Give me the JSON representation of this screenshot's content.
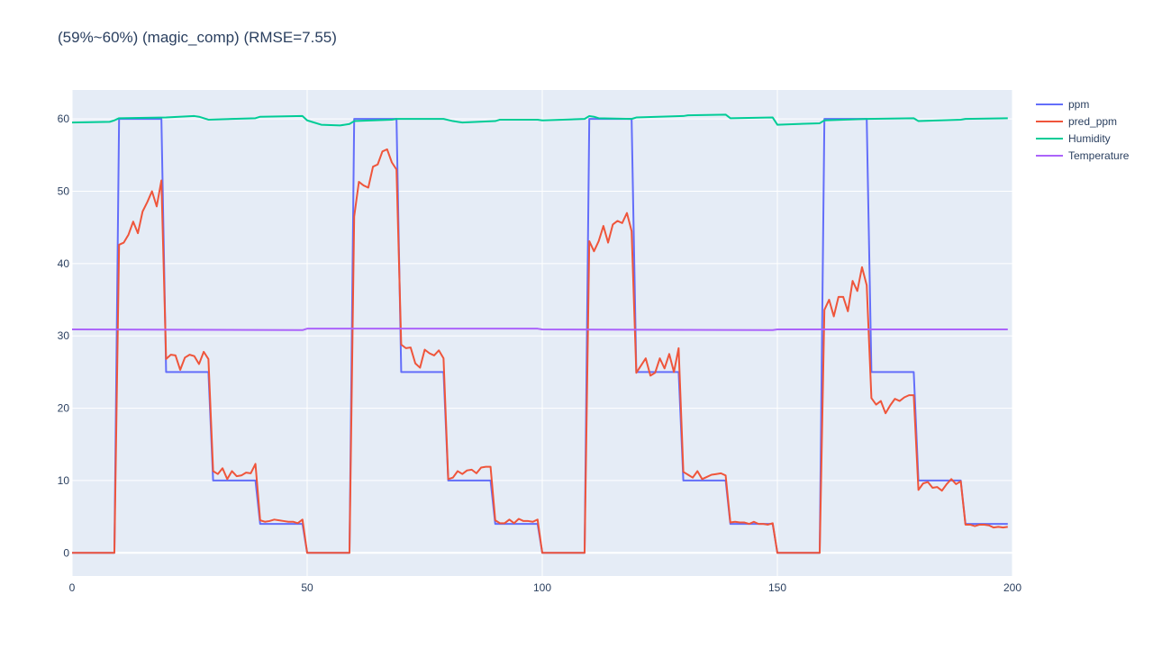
{
  "chart_data": {
    "type": "line",
    "title": "(59%~60%) (magic_comp) (RMSE=7.55)",
    "xlabel": "",
    "ylabel": "",
    "xlim": [
      0,
      200
    ],
    "ylim": [
      -3.2,
      64
    ],
    "x_ticks": [
      0,
      50,
      100,
      150,
      200
    ],
    "y_ticks": [
      0,
      10,
      20,
      30,
      40,
      50,
      60
    ],
    "grid": true,
    "legend_position": "top-right",
    "plot_background": "#e5ecf6",
    "series": [
      {
        "name": "ppm",
        "color": "#636efa",
        "points": [
          [
            0,
            0
          ],
          [
            9,
            0
          ],
          [
            10,
            60
          ],
          [
            19,
            60
          ],
          [
            20,
            25
          ],
          [
            29,
            25
          ],
          [
            30,
            10
          ],
          [
            39,
            10
          ],
          [
            40,
            4
          ],
          [
            49,
            4
          ],
          [
            50,
            0
          ],
          [
            59,
            0
          ],
          [
            60,
            60
          ],
          [
            69,
            60
          ],
          [
            70,
            25
          ],
          [
            79,
            25
          ],
          [
            80,
            10
          ],
          [
            89,
            10
          ],
          [
            90,
            4
          ],
          [
            99,
            4
          ],
          [
            100,
            0
          ],
          [
            109,
            0
          ],
          [
            110,
            60
          ],
          [
            119,
            60
          ],
          [
            120,
            25
          ],
          [
            129,
            25
          ],
          [
            130,
            10
          ],
          [
            139,
            10
          ],
          [
            140,
            4
          ],
          [
            149,
            4
          ],
          [
            150,
            0
          ],
          [
            159,
            0
          ],
          [
            160,
            60
          ],
          [
            169,
            60
          ],
          [
            170,
            25
          ],
          [
            179,
            25
          ],
          [
            180,
            10
          ],
          [
            189,
            10
          ],
          [
            190,
            4
          ],
          [
            199,
            4
          ]
        ]
      },
      {
        "name": "pred_ppm",
        "color": "#ef553b",
        "points": [
          [
            0,
            0
          ],
          [
            9,
            0
          ],
          [
            10,
            42.6
          ],
          [
            11,
            42.9
          ],
          [
            12,
            44.0
          ],
          [
            13,
            45.8
          ],
          [
            14,
            44.2
          ],
          [
            15,
            47.2
          ],
          [
            16,
            48.5
          ],
          [
            17,
            50.0
          ],
          [
            18,
            47.9
          ],
          [
            19,
            51.5
          ],
          [
            20,
            26.8
          ],
          [
            21,
            27.4
          ],
          [
            22,
            27.3
          ],
          [
            23,
            25.3
          ],
          [
            24,
            27.0
          ],
          [
            25,
            27.4
          ],
          [
            26,
            27.2
          ],
          [
            27,
            26.1
          ],
          [
            28,
            27.8
          ],
          [
            29,
            26.8
          ],
          [
            30,
            11.3
          ],
          [
            31,
            10.9
          ],
          [
            32,
            11.7
          ],
          [
            33,
            10.2
          ],
          [
            34,
            11.3
          ],
          [
            35,
            10.6
          ],
          [
            36,
            10.7
          ],
          [
            37,
            11.1
          ],
          [
            38,
            11.0
          ],
          [
            39,
            12.3
          ],
          [
            40,
            4.5
          ],
          [
            41,
            4.3
          ],
          [
            42,
            4.4
          ],
          [
            43,
            4.6
          ],
          [
            44,
            4.5
          ],
          [
            45,
            4.4
          ],
          [
            46,
            4.3
          ],
          [
            47,
            4.3
          ],
          [
            48,
            4.1
          ],
          [
            49,
            4.6
          ],
          [
            50,
            0
          ],
          [
            59,
            0
          ],
          [
            60,
            46.5
          ],
          [
            61,
            51.3
          ],
          [
            62,
            50.8
          ],
          [
            63,
            50.5
          ],
          [
            64,
            53.4
          ],
          [
            65,
            53.7
          ],
          [
            66,
            55.5
          ],
          [
            67,
            55.8
          ],
          [
            68,
            54.0
          ],
          [
            69,
            53.0
          ],
          [
            70,
            28.8
          ],
          [
            71,
            28.3
          ],
          [
            72,
            28.4
          ],
          [
            73,
            26.2
          ],
          [
            74,
            25.6
          ],
          [
            75,
            28.1
          ],
          [
            76,
            27.6
          ],
          [
            77,
            27.3
          ],
          [
            78,
            28.0
          ],
          [
            79,
            26.9
          ],
          [
            80,
            10.2
          ],
          [
            81,
            10.4
          ],
          [
            82,
            11.3
          ],
          [
            83,
            10.9
          ],
          [
            84,
            11.4
          ],
          [
            85,
            11.5
          ],
          [
            86,
            11.0
          ],
          [
            87,
            11.8
          ],
          [
            88,
            11.9
          ],
          [
            89,
            11.9
          ],
          [
            90,
            4.5
          ],
          [
            91,
            4.1
          ],
          [
            92,
            4.1
          ],
          [
            93,
            4.6
          ],
          [
            94,
            4.1
          ],
          [
            95,
            4.7
          ],
          [
            96,
            4.4
          ],
          [
            97,
            4.4
          ],
          [
            98,
            4.3
          ],
          [
            99,
            4.6
          ],
          [
            100,
            0
          ],
          [
            109,
            0
          ],
          [
            110,
            43.1
          ],
          [
            111,
            41.7
          ],
          [
            112,
            43.1
          ],
          [
            113,
            45.2
          ],
          [
            114,
            42.9
          ],
          [
            115,
            45.4
          ],
          [
            116,
            45.9
          ],
          [
            117,
            45.6
          ],
          [
            118,
            47.0
          ],
          [
            119,
            44.5
          ],
          [
            120,
            24.9
          ],
          [
            121,
            25.9
          ],
          [
            122,
            26.9
          ],
          [
            123,
            24.5
          ],
          [
            124,
            24.9
          ],
          [
            125,
            26.9
          ],
          [
            126,
            25.5
          ],
          [
            127,
            27.5
          ],
          [
            128,
            25.0
          ],
          [
            129,
            28.3
          ],
          [
            130,
            11.2
          ],
          [
            131,
            10.8
          ],
          [
            132,
            10.4
          ],
          [
            133,
            11.3
          ],
          [
            134,
            10.2
          ],
          [
            135,
            10.5
          ],
          [
            136,
            10.8
          ],
          [
            137,
            10.9
          ],
          [
            138,
            11.0
          ],
          [
            139,
            10.7
          ],
          [
            140,
            4.2
          ],
          [
            141,
            4.3
          ],
          [
            142,
            4.2
          ],
          [
            143,
            4.2
          ],
          [
            144,
            4.0
          ],
          [
            145,
            4.3
          ],
          [
            146,
            4.0
          ],
          [
            147,
            4.0
          ],
          [
            148,
            3.9
          ],
          [
            149,
            4.1
          ],
          [
            150,
            0
          ],
          [
            159,
            0
          ],
          [
            160,
            33.6
          ],
          [
            161,
            35.0
          ],
          [
            162,
            32.7
          ],
          [
            163,
            35.4
          ],
          [
            164,
            35.4
          ],
          [
            165,
            33.4
          ],
          [
            166,
            37.6
          ],
          [
            167,
            36.2
          ],
          [
            168,
            39.5
          ],
          [
            169,
            37.0
          ],
          [
            170,
            21.4
          ],
          [
            171,
            20.5
          ],
          [
            172,
            21.0
          ],
          [
            173,
            19.3
          ],
          [
            174,
            20.4
          ],
          [
            175,
            21.3
          ],
          [
            176,
            21.0
          ],
          [
            177,
            21.5
          ],
          [
            178,
            21.8
          ],
          [
            179,
            21.8
          ],
          [
            180,
            8.7
          ],
          [
            181,
            9.6
          ],
          [
            182,
            9.8
          ],
          [
            183,
            9.0
          ],
          [
            184,
            9.1
          ],
          [
            185,
            8.6
          ],
          [
            186,
            9.5
          ],
          [
            187,
            10.2
          ],
          [
            188,
            9.5
          ],
          [
            189,
            9.9
          ],
          [
            190,
            3.9
          ],
          [
            191,
            3.9
          ],
          [
            192,
            3.7
          ],
          [
            193,
            3.9
          ],
          [
            194,
            3.9
          ],
          [
            195,
            3.8
          ],
          [
            196,
            3.5
          ],
          [
            197,
            3.6
          ],
          [
            198,
            3.5
          ],
          [
            199,
            3.6
          ]
        ]
      },
      {
        "name": "Humidity",
        "color": "#00cc96",
        "points": [
          [
            0,
            59.5
          ],
          [
            8,
            59.6
          ],
          [
            9,
            59.8
          ],
          [
            10,
            60.1
          ],
          [
            20,
            60.2
          ],
          [
            26,
            60.4
          ],
          [
            27,
            60.3
          ],
          [
            29,
            59.9
          ],
          [
            34,
            60.0
          ],
          [
            39,
            60.1
          ],
          [
            40,
            60.3
          ],
          [
            49,
            60.4
          ],
          [
            50,
            59.8
          ],
          [
            51,
            59.6
          ],
          [
            53,
            59.2
          ],
          [
            57,
            59.1
          ],
          [
            59,
            59.3
          ],
          [
            60,
            59.7
          ],
          [
            68,
            59.9
          ],
          [
            69,
            60.0
          ],
          [
            79,
            60.0
          ],
          [
            81,
            59.7
          ],
          [
            83,
            59.5
          ],
          [
            90,
            59.7
          ],
          [
            91,
            59.9
          ],
          [
            99,
            59.9
          ],
          [
            100,
            59.8
          ],
          [
            109,
            60.0
          ],
          [
            110,
            60.4
          ],
          [
            111,
            60.3
          ],
          [
            112,
            60.1
          ],
          [
            119,
            60.0
          ],
          [
            120,
            60.2
          ],
          [
            130,
            60.4
          ],
          [
            131,
            60.5
          ],
          [
            139,
            60.6
          ],
          [
            140,
            60.1
          ],
          [
            149,
            60.2
          ],
          [
            150,
            59.2
          ],
          [
            159,
            59.4
          ],
          [
            160,
            59.8
          ],
          [
            169,
            60.0
          ],
          [
            179,
            60.1
          ],
          [
            180,
            59.7
          ],
          [
            189,
            59.9
          ],
          [
            190,
            60.0
          ],
          [
            199,
            60.1
          ]
        ]
      },
      {
        "name": "Temperature",
        "color": "#ab63fa",
        "points": [
          [
            0,
            30.9
          ],
          [
            49,
            30.8
          ],
          [
            50,
            31.0
          ],
          [
            99,
            31.0
          ],
          [
            100,
            30.9
          ],
          [
            149,
            30.8
          ],
          [
            150,
            30.9
          ],
          [
            199,
            30.9
          ]
        ]
      }
    ]
  }
}
